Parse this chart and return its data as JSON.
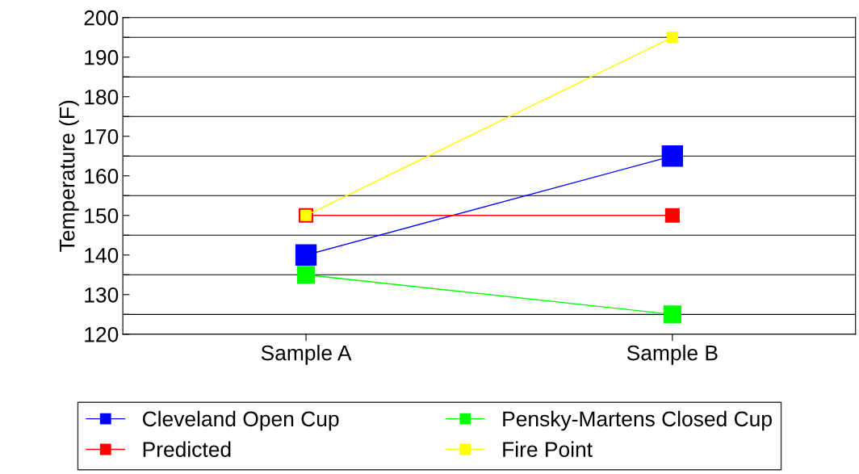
{
  "chart_data": {
    "type": "line",
    "ylabel": "Temperature (F)",
    "categories": [
      "Sample A",
      "Sample B"
    ],
    "series": [
      {
        "name": "Cleveland Open Cup",
        "color": "#0000ff",
        "values": [
          140,
          165
        ]
      },
      {
        "name": "Pensky-Martens Closed Cup",
        "color": "#00ff00",
        "values": [
          135,
          125
        ]
      },
      {
        "name": "Predicted",
        "color": "#ff0000",
        "values": [
          150,
          150
        ]
      },
      {
        "name": "Fire Point",
        "color": "#ffff00",
        "values": [
          150,
          195
        ]
      }
    ],
    "ylim": [
      120,
      200
    ],
    "yticks": [
      120,
      {
        "value": 125,
        "label": null
      },
      130,
      {
        "value": 135,
        "label": null
      },
      140,
      {
        "value": 145,
        "label": null
      },
      150,
      {
        "value": 155,
        "label": null
      },
      160,
      {
        "value": 165,
        "label": null
      },
      170,
      {
        "value": 175,
        "label": null
      },
      180,
      {
        "value": 185,
        "label": null
      },
      190,
      {
        "value": 195,
        "label": null
      },
      200
    ],
    "grid": "y",
    "legend": "bottom",
    "marker": "square",
    "line_style": "solid"
  }
}
